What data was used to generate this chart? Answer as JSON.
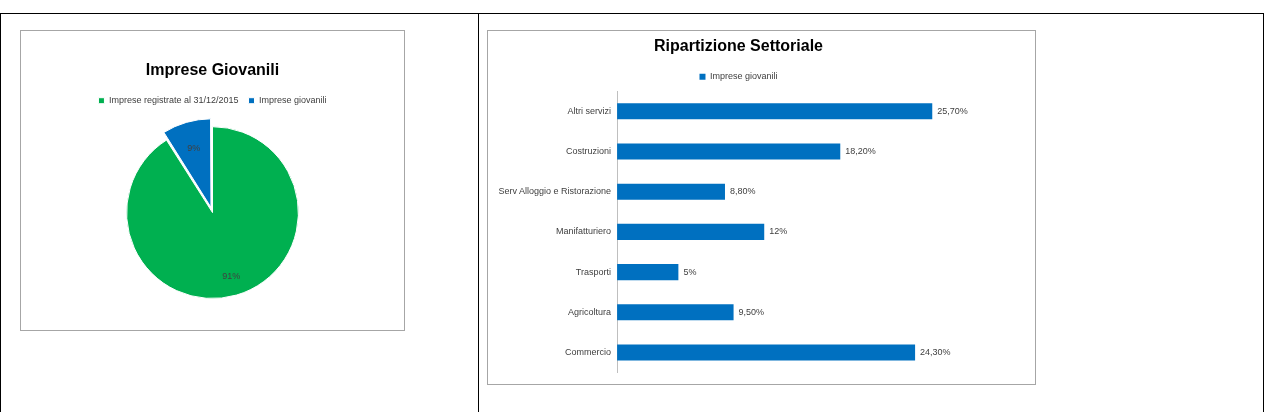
{
  "chart_data": [
    {
      "type": "pie",
      "title": "Imprese Giovanili",
      "categories": [
        "Imprese registrate al 31/12/2015",
        "Imprese giovanili"
      ],
      "values": [
        91,
        9
      ],
      "colors": [
        "#00b050",
        "#0070c0"
      ],
      "value_labels": [
        "91%",
        "9%"
      ],
      "legend": "top"
    },
    {
      "type": "bar",
      "orientation": "horizontal",
      "title": "Ripartizione Settoriale",
      "categories": [
        "Altri servizi",
        "Costruzioni",
        "Serv Alloggio e Ristorazione",
        "Manifatturiero",
        "Trasporti",
        "Agricoltura",
        "Commercio"
      ],
      "series": [
        {
          "name": "Imprese giovanili",
          "color": "#0070c0",
          "values": [
            25.7,
            18.2,
            8.8,
            12,
            5,
            9.5,
            24.3
          ],
          "value_labels": [
            "25,70%",
            "18,20%",
            "8,80%",
            "12%",
            "5%",
            "9,50%",
            "24,30%"
          ]
        }
      ],
      "legend": "top",
      "tick_labels": "y"
    }
  ]
}
